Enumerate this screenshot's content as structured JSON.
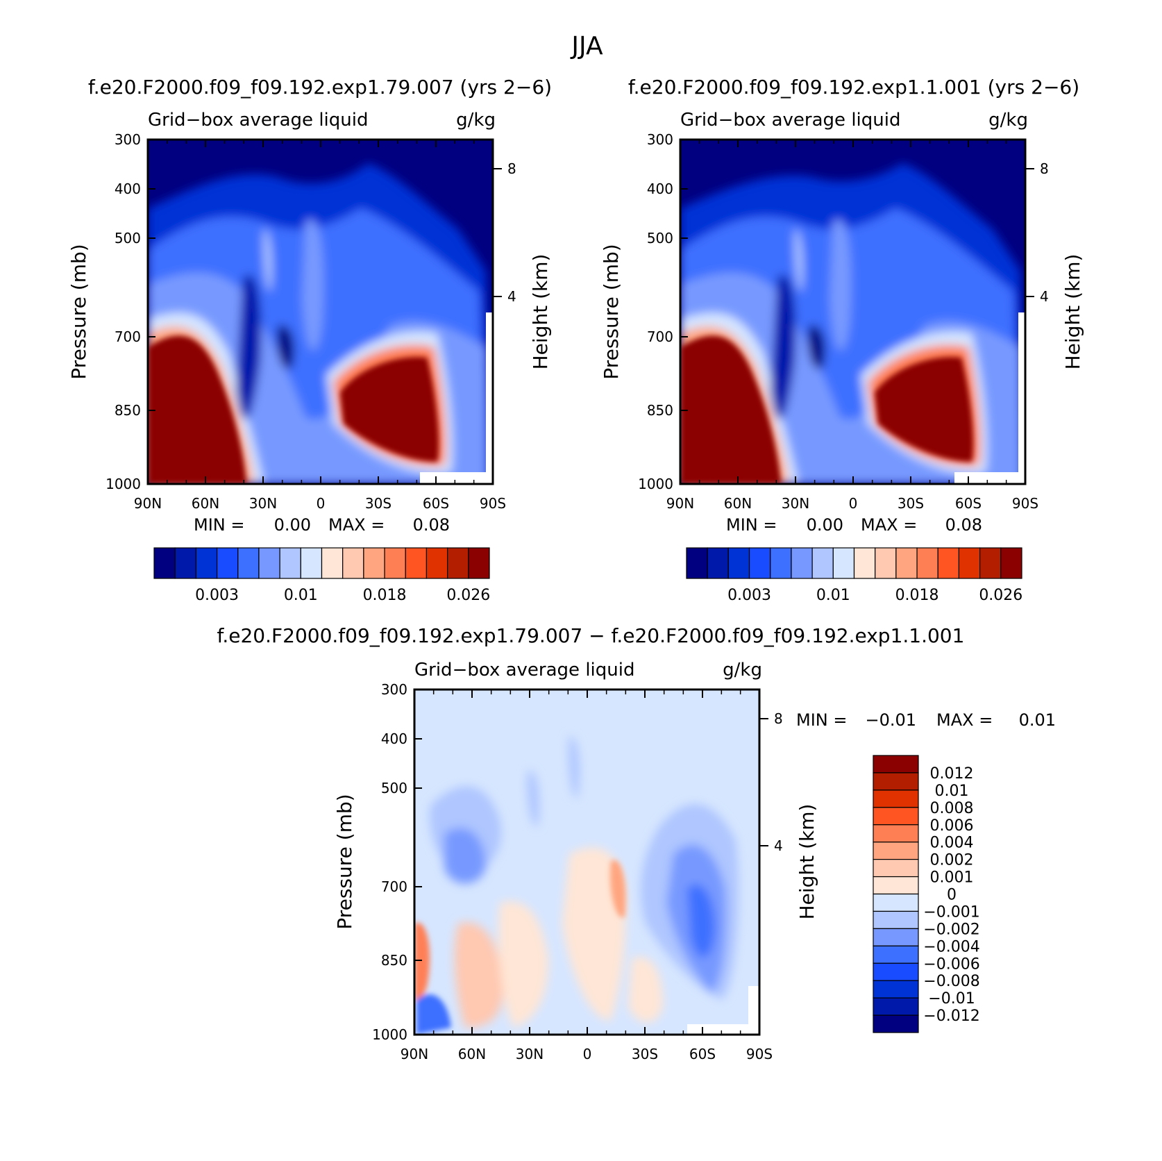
{
  "figure_title": "JJA",
  "chart_data": [
    {
      "type": "heatmap",
      "title": "f.e20.F2000.f09_f09.192.exp1.79.007 (yrs 2−6)",
      "subtitle_left": "Grid−box average liquid",
      "subtitle_right": "g/kg",
      "ylabel": "Pressure (mb)",
      "ylabel_right": "Height (km)",
      "x_ticks": [
        "90N",
        "60N",
        "30N",
        "0",
        "30S",
        "60S",
        "90S"
      ],
      "xlim": [
        90,
        -90
      ],
      "y_ticks": [
        "300",
        "400",
        "500",
        "700",
        "850",
        "1000"
      ],
      "y_ticks_right": [
        "8",
        "4"
      ],
      "ylim": [
        1000,
        300
      ],
      "stats": {
        "min_label": "MIN =",
        "min": "0.00",
        "max_label": "MAX =",
        "max": "0.08"
      },
      "colorbar": {
        "orientation": "horizontal",
        "colors": [
          "#000080",
          "#0019aa",
          "#0033d6",
          "#1a4cff",
          "#3d70ff",
          "#7799ff",
          "#afc6ff",
          "#d6e6ff",
          "#ffe6d6",
          "#ffc8b0",
          "#ffa680",
          "#ff7f55",
          "#ff5522",
          "#e03200",
          "#b41e00",
          "#8b0000"
        ],
        "labels": [
          "0.003",
          "0.01",
          "0.018",
          "0.026"
        ]
      }
    },
    {
      "type": "heatmap",
      "title": "f.e20.F2000.f09_f09.192.exp1.1.001 (yrs 2−6)",
      "subtitle_left": "Grid−box average liquid",
      "subtitle_right": "g/kg",
      "ylabel": "Pressure (mb)",
      "ylabel_right": "Height (km)",
      "x_ticks": [
        "90N",
        "60N",
        "30N",
        "0",
        "30S",
        "60S",
        "90S"
      ],
      "xlim": [
        90,
        -90
      ],
      "y_ticks": [
        "300",
        "400",
        "500",
        "700",
        "850",
        "1000"
      ],
      "y_ticks_right": [
        "8",
        "4"
      ],
      "ylim": [
        1000,
        300
      ],
      "stats": {
        "min_label": "MIN =",
        "min": "0.00",
        "max_label": "MAX =",
        "max": "0.08"
      },
      "colorbar": {
        "orientation": "horizontal",
        "colors": [
          "#000080",
          "#0019aa",
          "#0033d6",
          "#1a4cff",
          "#3d70ff",
          "#7799ff",
          "#afc6ff",
          "#d6e6ff",
          "#ffe6d6",
          "#ffc8b0",
          "#ffa680",
          "#ff7f55",
          "#ff5522",
          "#e03200",
          "#b41e00",
          "#8b0000"
        ],
        "labels": [
          "0.003",
          "0.01",
          "0.018",
          "0.026"
        ]
      }
    },
    {
      "type": "heatmap",
      "title": "f.e20.F2000.f09_f09.192.exp1.79.007 − f.e20.F2000.f09_f09.192.exp1.1.001",
      "subtitle_left": "Grid−box average liquid",
      "subtitle_right": "g/kg",
      "ylabel": "Pressure (mb)",
      "ylabel_right": "Height (km)",
      "x_ticks": [
        "90N",
        "60N",
        "30N",
        "0",
        "30S",
        "60S",
        "90S"
      ],
      "xlim": [
        90,
        -90
      ],
      "y_ticks": [
        "300",
        "400",
        "500",
        "700",
        "850",
        "1000"
      ],
      "y_ticks_right": [
        "8",
        "4"
      ],
      "ylim": [
        1000,
        300
      ],
      "stats": {
        "min_label": "MIN =",
        "min": "−0.01",
        "max_label": "MAX =",
        "max": "0.01"
      },
      "colorbar": {
        "orientation": "vertical",
        "colors": [
          "#8b0000",
          "#b41e00",
          "#e03200",
          "#ff5522",
          "#ff7f55",
          "#ffa680",
          "#ffc8b0",
          "#ffe6d6",
          "#d6e6ff",
          "#afc6ff",
          "#7799ff",
          "#3d70ff",
          "#1a4cff",
          "#0033d6",
          "#0019aa",
          "#000080"
        ],
        "labels": [
          "0.012",
          "0.01",
          "0.008",
          "0.006",
          "0.004",
          "0.002",
          "0.001",
          "0",
          "−0.001",
          "−0.002",
          "−0.004",
          "−0.006",
          "−0.008",
          "−0.01",
          "−0.012"
        ]
      }
    }
  ]
}
